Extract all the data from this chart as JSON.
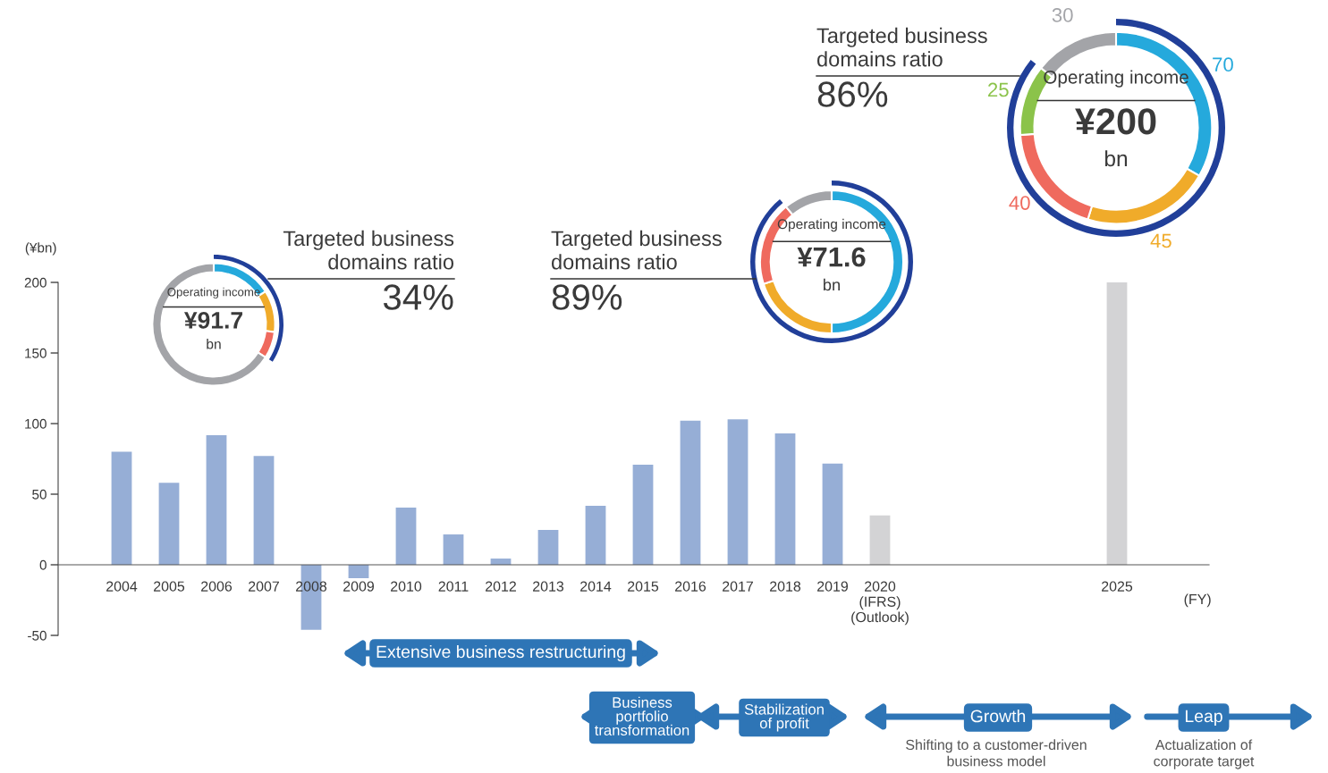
{
  "chart_data": [
    {
      "type": "bar",
      "ylabel": "(¥bn)",
      "xlabel": "(FY)",
      "categories": [
        "2004",
        "2005",
        "2006",
        "2007",
        "2008",
        "2009",
        "2010",
        "2011",
        "2012",
        "2013",
        "2014",
        "2015",
        "2016",
        "2017",
        "2018",
        "2019",
        "2020\n(IFRS)\n(Outlook)",
        null,
        null,
        null,
        null,
        "2025"
      ],
      "values": [
        80,
        58,
        91.7,
        77,
        -46,
        -9.5,
        40.5,
        21.5,
        4.4,
        24.7,
        41.8,
        70.9,
        102,
        103,
        93,
        71.6,
        35,
        null,
        null,
        null,
        null,
        200
      ],
      "colors": [
        "#96aed6",
        "#96aed6",
        "#96aed6",
        "#96aed6",
        "#96aed6",
        "#96aed6",
        "#96aed6",
        "#96aed6",
        "#96aed6",
        "#96aed6",
        "#96aed6",
        "#96aed6",
        "#96aed6",
        "#96aed6",
        "#96aed6",
        "#96aed6",
        "#d3d3d5",
        null,
        null,
        null,
        null,
        "#d3d3d5"
      ],
      "ylim": [
        -50,
        200
      ],
      "yticks": [
        -50,
        0,
        50,
        100,
        150,
        200
      ],
      "grid": false,
      "legend": false,
      "annotations": [
        "Extensive business restructuring",
        "Business\nportfolio\ntransformation",
        "Stabilization\nof profit",
        "Growth",
        "Shifting to a customer-driven\nbusiness model",
        "Leap",
        "Actualization of\ncorporate target"
      ]
    },
    {
      "type": "donut",
      "values": [
        16,
        11,
        7,
        66
      ],
      "colors": [
        "#25a9dc",
        "#f0ab2a",
        "#ef6a5e",
        "#a3a4a8"
      ],
      "annotations": [
        "Operating income",
        "¥91.7",
        "bn",
        "Targeted business\ndomains ratio",
        "34%"
      ]
    },
    {
      "type": "donut",
      "values": [
        50,
        20,
        19,
        11
      ],
      "colors": [
        "#25a9dc",
        "#f0ab2a",
        "#ef6a5e",
        "#a3a4a8"
      ],
      "annotations": [
        "Operating income",
        "¥71.6",
        "bn",
        "Targeted business\ndomains ratio",
        "89%"
      ]
    },
    {
      "type": "donut",
      "data_labels": true,
      "values": [
        70,
        45,
        40,
        25,
        30
      ],
      "colors": [
        "#25a9dc",
        "#f0ab2a",
        "#ef6a5e",
        "#8bc34a",
        "#a3a4a8"
      ],
      "annotations": [
        "Operating income",
        "¥200",
        "bn",
        "Targeted business\ndomains ratio",
        "86%"
      ]
    }
  ]
}
